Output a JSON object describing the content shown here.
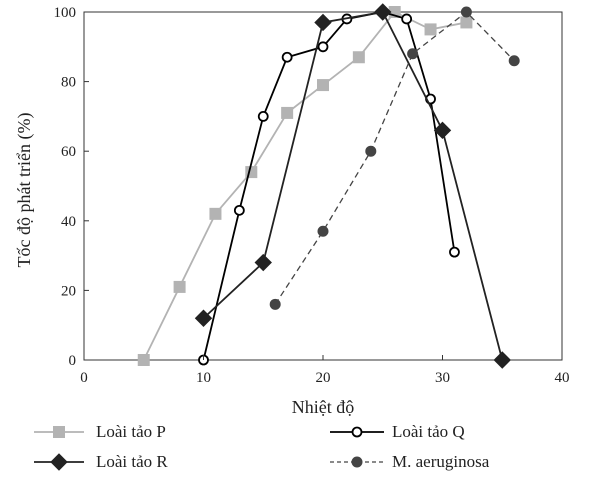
{
  "chart_data": {
    "type": "line",
    "title": "",
    "xlabel": "Nhiệt độ",
    "ylabel": "Tốc độ phát triển (%)",
    "xlim": [
      0,
      40
    ],
    "ylim": [
      0,
      100
    ],
    "xticks": [
      0,
      10,
      20,
      30,
      40
    ],
    "yticks": [
      0,
      20,
      40,
      60,
      80,
      100
    ],
    "grid": false,
    "legend_position": "bottom",
    "series": [
      {
        "name": "Loài tảo P",
        "color": "#b3b3b3",
        "line_style": "solid",
        "marker": "square",
        "x": [
          5,
          8,
          11,
          14,
          17,
          20,
          23,
          26,
          29,
          32
        ],
        "y": [
          0,
          21,
          42,
          54,
          71,
          79,
          87,
          100,
          95,
          97
        ]
      },
      {
        "name": "Loài tảo Q",
        "color": "#000000",
        "line_style": "solid",
        "marker": "open-circle",
        "x": [
          10,
          13,
          15,
          17,
          20,
          22,
          25,
          27,
          29,
          31
        ],
        "y": [
          0,
          43,
          70,
          87,
          90,
          98,
          100,
          98,
          75,
          31
        ]
      },
      {
        "name": "Loài tảo R",
        "color": "#222222",
        "line_style": "solid",
        "marker": "diamond",
        "x": [
          10,
          15,
          20,
          25,
          30,
          35
        ],
        "y": [
          12,
          28,
          97,
          100,
          66,
          0
        ]
      },
      {
        "name": "M. aeruginosa",
        "color": "#444444",
        "line_style": "dashed",
        "marker": "filled-circle",
        "x": [
          16,
          20,
          24,
          27.5,
          32,
          36
        ],
        "y": [
          16,
          37,
          60,
          88,
          100,
          86
        ]
      }
    ]
  }
}
